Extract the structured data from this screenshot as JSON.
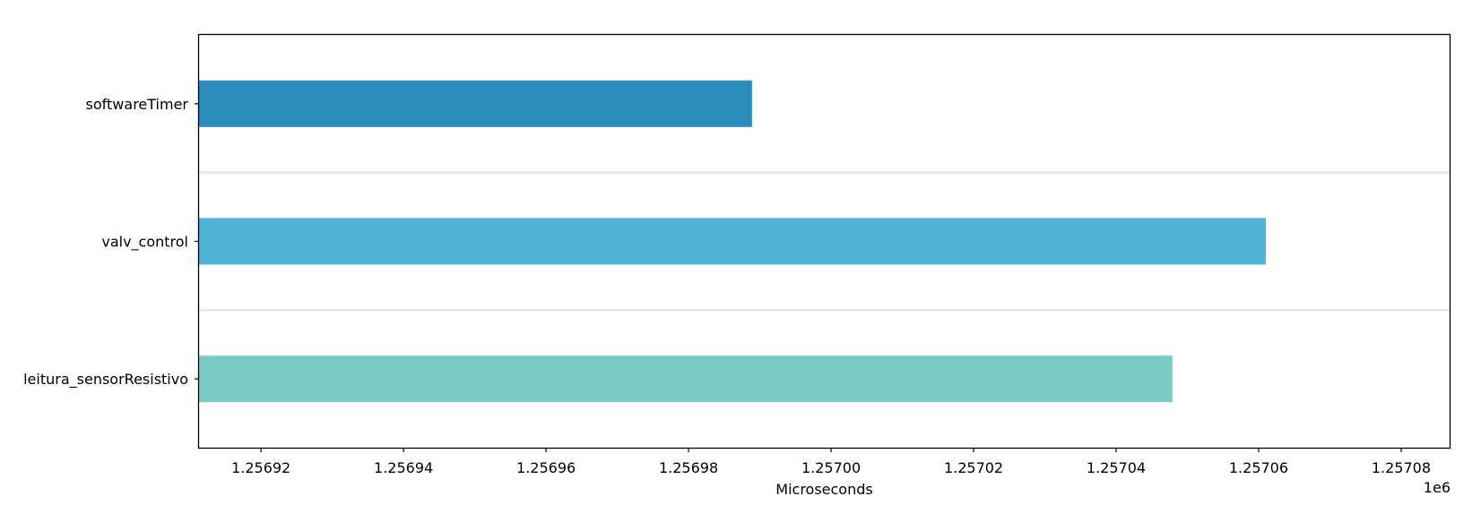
{
  "chart_data": {
    "type": "bar",
    "orientation": "horizontal",
    "categories": [
      "softwareTimer",
      "valv_control",
      "leitura_sensorResistivo"
    ],
    "values": [
      1256988.9,
      1257061.0,
      1257047.9
    ],
    "colors": [
      "#2b8cbe",
      "#4eb3d3",
      "#7bccc4"
    ],
    "xlabel": "Microseconds",
    "ylabel": "",
    "title": "",
    "xlim": [
      1256911.3,
      1257086.8
    ],
    "xticks": [
      1256920,
      1256940,
      1256960,
      1256980,
      1257000,
      1257020,
      1257040,
      1257060,
      1257080
    ],
    "xtick_labels": [
      "1.25692",
      "1.25694",
      "1.25696",
      "1.25698",
      "1.25700",
      "1.25702",
      "1.25704",
      "1.25706",
      "1.25708"
    ],
    "offset_text": "1e6",
    "grid": false,
    "separators": true,
    "separator_color": "#e8e8e8"
  }
}
